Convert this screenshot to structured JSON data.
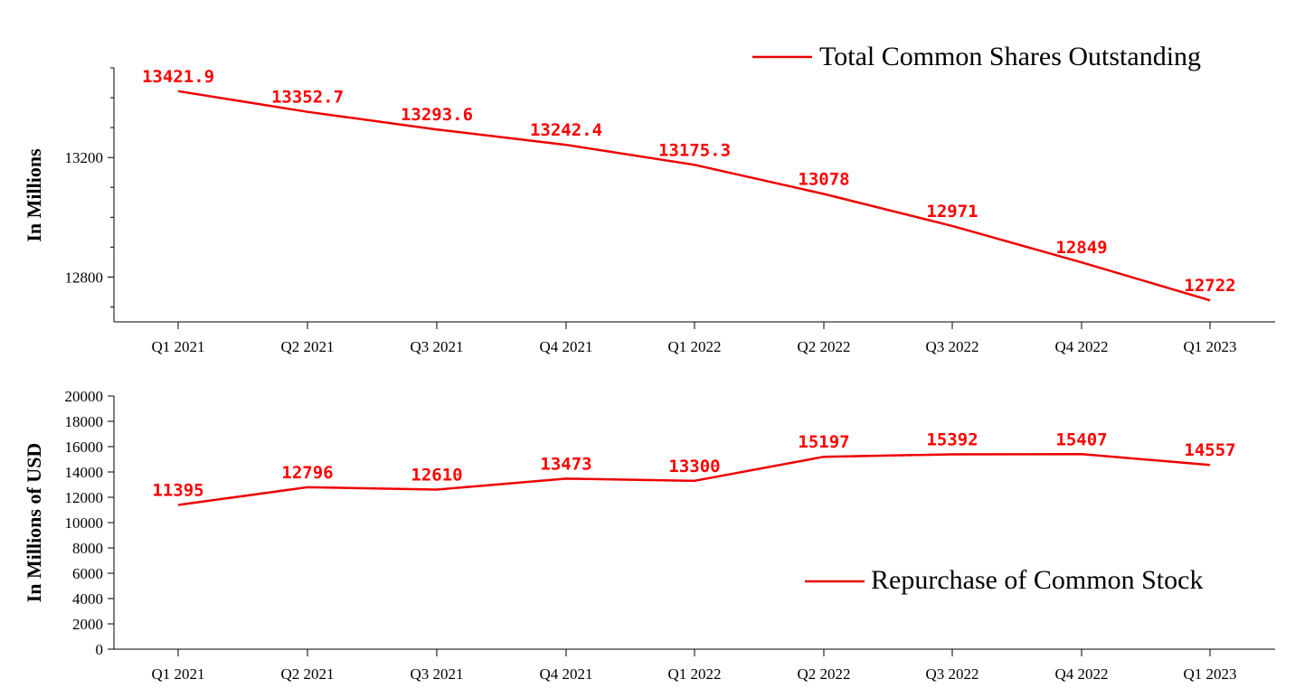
{
  "colors": {
    "series": "#ee0000",
    "label": "#ff0000",
    "axis": "#000000"
  },
  "chart_data": [
    {
      "type": "line",
      "ylabel": "In Millions",
      "categories": [
        "Q1 2021",
        "Q2 2021",
        "Q3 2021",
        "Q4 2021",
        "Q1 2022",
        "Q2 2022",
        "Q3 2022",
        "Q4 2022",
        "Q1 2023"
      ],
      "series": [
        {
          "name": "Total Common Shares Outstanding",
          "values": [
            13421.9,
            13352.7,
            13293.6,
            13242.4,
            13175.3,
            13078,
            12971,
            12849,
            12722
          ],
          "labels": [
            "13421.9",
            "13352.7",
            "13293.6",
            "13242.4",
            "13175.3",
            "13078",
            "12971",
            "12849",
            "12722"
          ]
        }
      ],
      "ylim": [
        12650,
        13500
      ],
      "yticks_labeled": [
        12800,
        13200
      ],
      "yticks_labels": [
        "12800",
        "13200"
      ],
      "legend": "top-right",
      "grid": false
    },
    {
      "type": "line",
      "ylabel": "In Millions of USD",
      "categories": [
        "Q1 2021",
        "Q2 2021",
        "Q3 2021",
        "Q4 2021",
        "Q1 2022",
        "Q2 2022",
        "Q3 2022",
        "Q4 2022",
        "Q1 2023"
      ],
      "series": [
        {
          "name": "Repurchase of Common Stock",
          "values": [
            11395,
            12796,
            12610,
            13473,
            13300,
            15197,
            15392,
            15407,
            14557
          ],
          "labels": [
            "11395",
            "12796",
            "12610",
            "13473",
            "13300",
            "15197",
            "15392",
            "15407",
            "14557"
          ]
        }
      ],
      "ylim": [
        0,
        20000
      ],
      "yticks_labeled": [
        0,
        2000,
        4000,
        6000,
        8000,
        10000,
        12000,
        14000,
        16000,
        18000,
        20000
      ],
      "yticks_labels": [
        "0",
        "2000",
        "4000",
        "6000",
        "8000",
        "10000",
        "12000",
        "14000",
        "16000",
        "18000",
        "20000"
      ],
      "legend": "bottom-right",
      "grid": false
    }
  ]
}
